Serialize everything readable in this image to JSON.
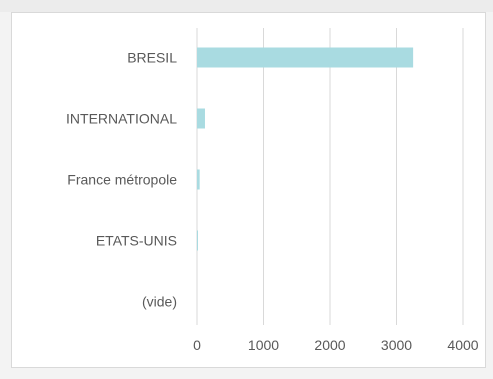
{
  "chart_data": {
    "type": "bar",
    "orientation": "horizontal",
    "categories": [
      "BRESIL",
      "INTERNATIONAL",
      "France métropole",
      "ETATS-UNIS",
      "(vide)"
    ],
    "values": [
      3250,
      120,
      40,
      15,
      0
    ],
    "xlim": [
      0,
      4000
    ],
    "xticks": [
      "0",
      "1000",
      "2000",
      "3000",
      "4000"
    ],
    "grid": "vertical",
    "bar_color": "#a9dbe1",
    "title": "",
    "xlabel": "",
    "ylabel": ""
  }
}
